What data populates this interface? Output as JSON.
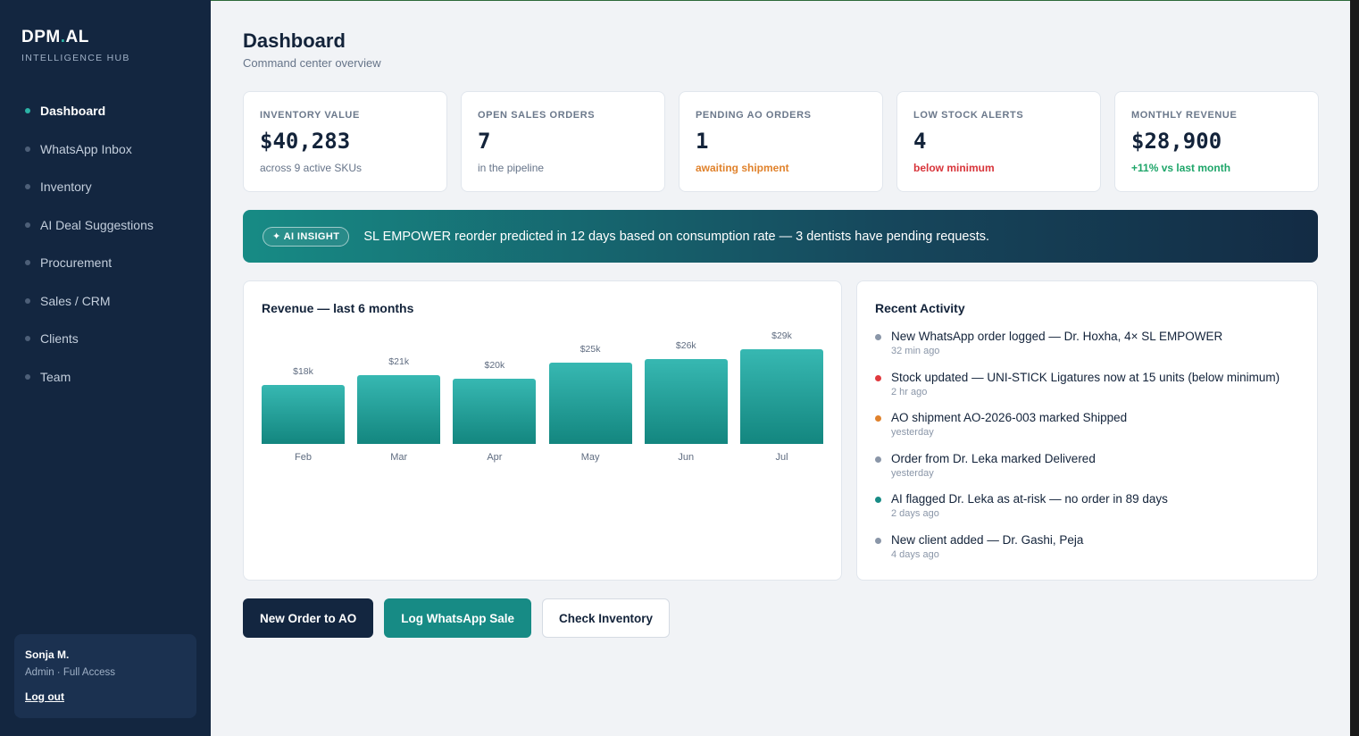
{
  "brand": {
    "name_part1": "DPM",
    "name_dot": ".",
    "name_part2": "AL",
    "subtitle": "INTELLIGENCE HUB"
  },
  "sidebar": {
    "items": [
      {
        "label": "Dashboard",
        "active": true
      },
      {
        "label": "WhatsApp Inbox"
      },
      {
        "label": "Inventory"
      },
      {
        "label": "AI Deal Suggestions"
      },
      {
        "label": "Procurement"
      },
      {
        "label": "Sales / CRM"
      },
      {
        "label": "Clients"
      },
      {
        "label": "Team"
      }
    ],
    "user": {
      "name": "Sonja M.",
      "role": "Admin · Full Access",
      "logout": "Log out"
    }
  },
  "header": {
    "title": "Dashboard",
    "subtitle": "Command center overview"
  },
  "stats": [
    {
      "label": "INVENTORY VALUE",
      "value": "$40,283",
      "note": "across 9 active SKUs",
      "note_color": "#667489"
    },
    {
      "label": "OPEN SALES ORDERS",
      "value": "7",
      "note": "in the pipeline",
      "note_color": "#667489"
    },
    {
      "label": "PENDING AO ORDERS",
      "value": "1",
      "note": "awaiting shipment",
      "note_color": "#e0822c"
    },
    {
      "label": "LOW STOCK ALERTS",
      "value": "4",
      "note": "below minimum",
      "note_color": "#d8343a"
    },
    {
      "label": "MONTHLY REVENUE",
      "value": "$28,900",
      "note": "+11% vs last month",
      "note_color": "#1fa66a"
    }
  ],
  "insight": {
    "badge": "✦ AI INSIGHT",
    "text": "SL EMPOWER reorder predicted in 12 days based on consumption rate — 3 dentists have pending requests."
  },
  "revenue": {
    "title": "Revenue — last 6 months"
  },
  "chart_data": {
    "type": "bar",
    "title": "Revenue — last 6 months",
    "categories": [
      "Feb",
      "Mar",
      "Apr",
      "May",
      "Jun",
      "Jul"
    ],
    "values": [
      18,
      21,
      20,
      25,
      26,
      29
    ],
    "value_labels": [
      "$18k",
      "$21k",
      "$20k",
      "$25k",
      "$26k",
      "$29k"
    ],
    "xlabel": "",
    "ylabel": "",
    "color": "#178b85"
  },
  "activity": {
    "title": "Recent Activity",
    "items": [
      {
        "text": "New WhatsApp order logged — Dr. Hoxha, 4× SL EMPOWER",
        "time": "32 min ago",
        "color": "#8a96a8"
      },
      {
        "text": "Stock updated — UNI-STICK Ligatures now at 15 units (below minimum)",
        "time": "2 hr ago",
        "color": "#e0393e"
      },
      {
        "text": "AO shipment AO-2026-003 marked Shipped",
        "time": "yesterday",
        "color": "#e0822c"
      },
      {
        "text": "Order from Dr. Leka marked Delivered",
        "time": "yesterday",
        "color": "#8a96a8"
      },
      {
        "text": "AI flagged Dr. Leka as at-risk — no order in 89 days",
        "time": "2 days ago",
        "color": "#178b85"
      },
      {
        "text": "New client added — Dr. Gashi, Peja",
        "time": "4 days ago",
        "color": "#8a96a8"
      }
    ]
  },
  "actions": {
    "new_order": "New Order to AO",
    "log_sale": "Log WhatsApp Sale",
    "check_inventory": "Check Inventory"
  }
}
